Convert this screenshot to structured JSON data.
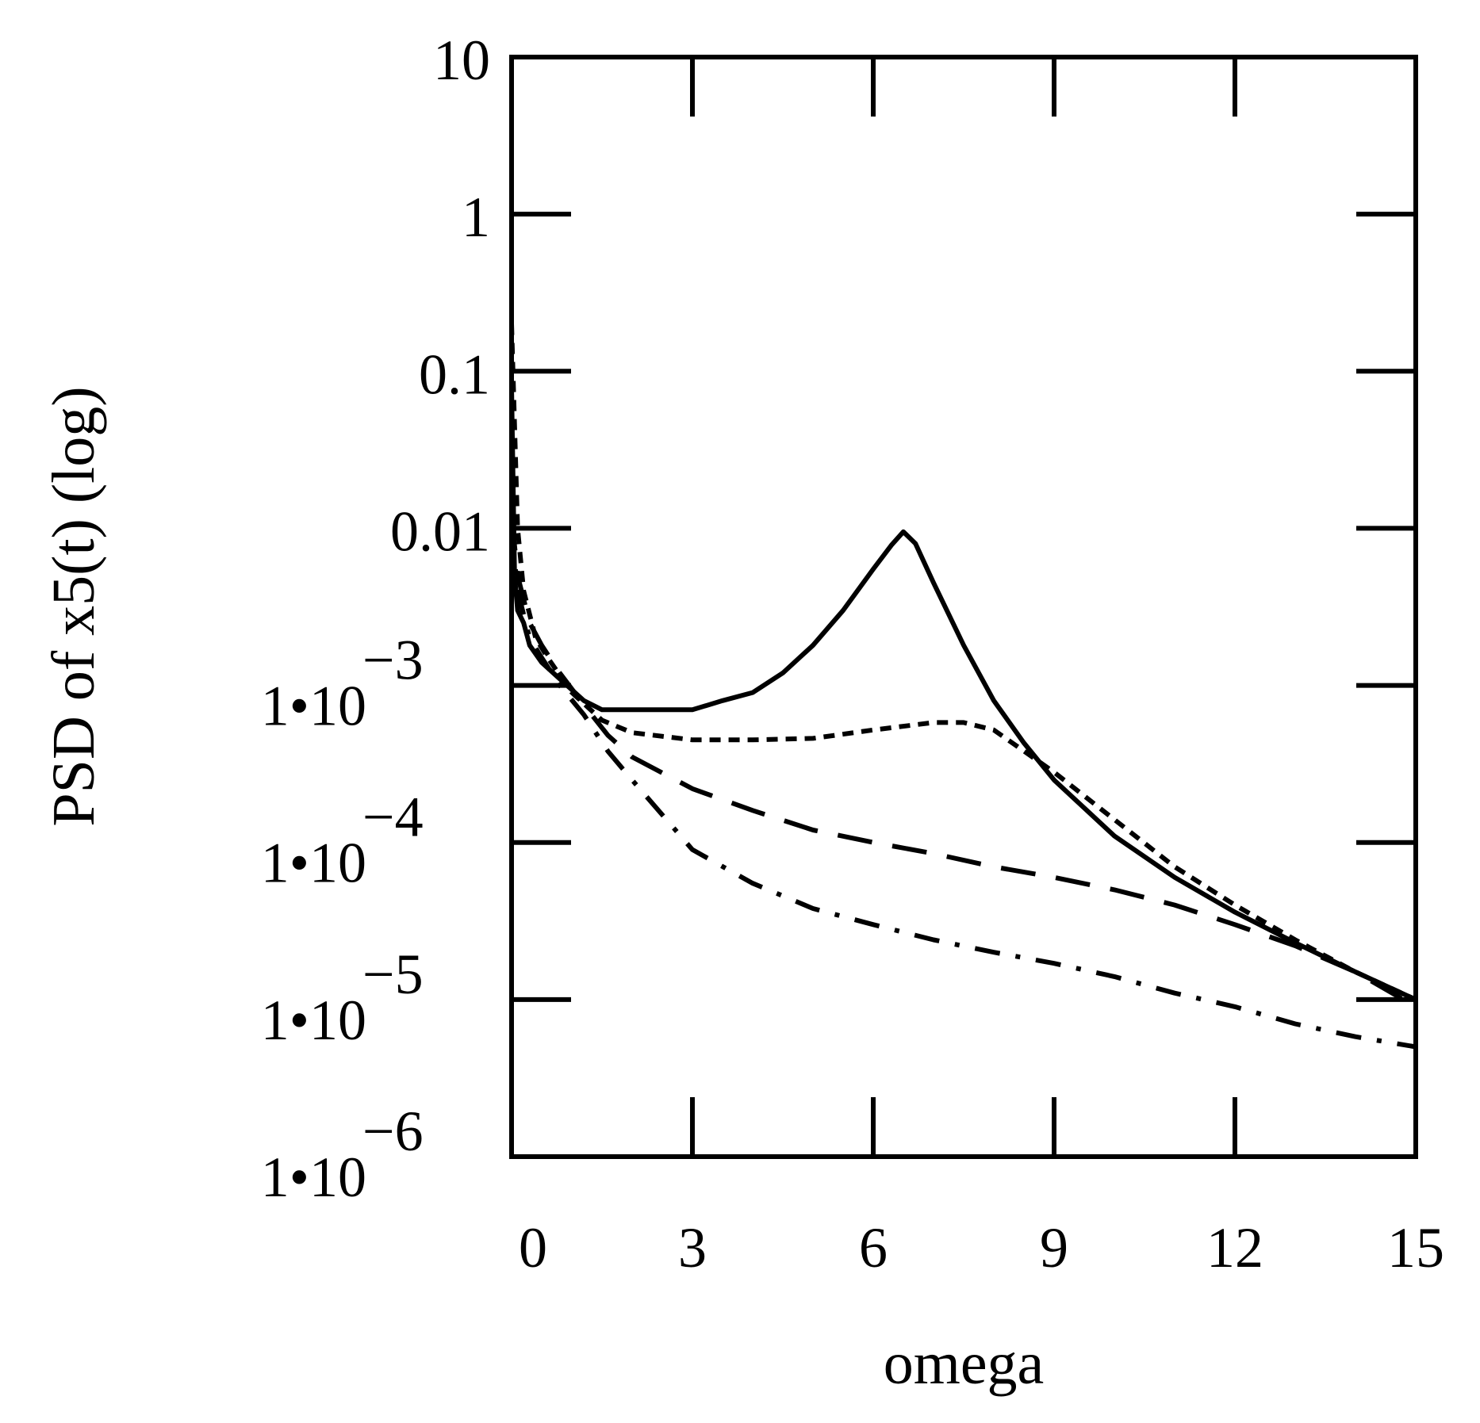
{
  "chart_data": {
    "type": "line",
    "title": "",
    "xlabel": "omega",
    "ylabel": "PSD of x5(t) (log)",
    "xscale": "linear",
    "yscale": "log",
    "xlim": [
      0,
      15
    ],
    "ylim": [
      1e-06,
      10
    ],
    "grid": false,
    "legend": "none",
    "x_ticks": [
      {
        "value": 0,
        "label": "0"
      },
      {
        "value": 3,
        "label": "3"
      },
      {
        "value": 6,
        "label": "6"
      },
      {
        "value": 9,
        "label": "9"
      },
      {
        "value": 12,
        "label": "12"
      },
      {
        "value": 15,
        "label": "15"
      }
    ],
    "y_ticks": [
      {
        "exp": 1,
        "label": "10"
      },
      {
        "exp": 0,
        "label": "1"
      },
      {
        "exp": -1,
        "label": "0.1"
      },
      {
        "exp": -2,
        "label": "0.01"
      },
      {
        "exp": -3,
        "mantissa": "1•10",
        "power": "−3"
      },
      {
        "exp": -4,
        "mantissa": "1•10",
        "power": "−4"
      },
      {
        "exp": -5,
        "mantissa": "1•10",
        "power": "−5"
      },
      {
        "exp": -6,
        "mantissa": "1•10",
        "power": "−6"
      }
    ],
    "series": [
      {
        "name": "solid",
        "style": "solid",
        "x": [
          0.0,
          0.05,
          0.1,
          0.2,
          0.3,
          0.5,
          0.8,
          1.2,
          1.5,
          2.0,
          3.0,
          3.5,
          4.0,
          4.5,
          5.0,
          5.5,
          6.0,
          6.3,
          6.5,
          6.7,
          7.0,
          7.5,
          8.0,
          8.5,
          9.0,
          10.0,
          11.0,
          12.0,
          13.0,
          14.0,
          15.0
        ],
        "y": [
          0.08,
          0.005,
          0.003,
          0.0025,
          0.0018,
          0.0014,
          0.0011,
          0.0008,
          0.0007,
          0.0007,
          0.0007,
          0.0008,
          0.0009,
          0.0012,
          0.0018,
          0.003,
          0.0055,
          0.0078,
          0.0095,
          0.008,
          0.0045,
          0.0018,
          0.0008,
          0.00043,
          0.00025,
          0.00011,
          6e-05,
          3.6e-05,
          2.3e-05,
          1.5e-05,
          1e-05
        ]
      },
      {
        "name": "short-dash",
        "style": "short-dash",
        "x": [
          0.0,
          0.1,
          0.2,
          0.4,
          0.6,
          1.0,
          1.5,
          2.0,
          3.0,
          4.0,
          5.0,
          6.0,
          7.0,
          7.5,
          8.0,
          9.0,
          10.0,
          11.0,
          12.0,
          13.0,
          14.0,
          15.0
        ],
        "y": [
          0.2,
          0.01,
          0.004,
          0.002,
          0.0015,
          0.0009,
          0.0006,
          0.0005,
          0.00045,
          0.00045,
          0.00046,
          0.00052,
          0.00058,
          0.00058,
          0.00052,
          0.00028,
          0.00014,
          7e-05,
          4e-05,
          2.4e-05,
          1.5e-05,
          1e-05
        ]
      },
      {
        "name": "long-dash",
        "style": "long-dash",
        "x": [
          0.0,
          0.1,
          0.3,
          0.5,
          0.8,
          1.2,
          1.6,
          2.0,
          3.0,
          4.0,
          5.0,
          6.0,
          7.0,
          8.0,
          9.0,
          10.0,
          11.0,
          12.0,
          13.0,
          14.0,
          15.0
        ],
        "y": [
          0.012,
          0.005,
          0.0025,
          0.0018,
          0.0012,
          0.00075,
          0.00048,
          0.00035,
          0.00022,
          0.00016,
          0.00012,
          0.0001,
          8.5e-05,
          7e-05,
          6e-05,
          5e-05,
          4e-05,
          3e-05,
          2.2e-05,
          1.5e-05,
          9e-06
        ]
      },
      {
        "name": "dash-dot",
        "style": "dash-dot",
        "x": [
          0.0,
          0.1,
          0.3,
          0.5,
          0.8,
          1.2,
          1.6,
          2.0,
          2.5,
          3.0,
          4.0,
          5.0,
          6.0,
          7.0,
          8.0,
          9.0,
          10.0,
          11.0,
          12.0,
          13.0,
          14.0,
          15.0
        ],
        "y": [
          0.01,
          0.004,
          0.002,
          0.0015,
          0.001,
          0.00065,
          0.00038,
          0.00025,
          0.00015,
          9e-05,
          5.5e-05,
          3.8e-05,
          3e-05,
          2.4e-05,
          2e-05,
          1.7e-05,
          1.4e-05,
          1.1e-05,
          9e-06,
          7e-06,
          5.8e-06,
          5e-06
        ]
      }
    ]
  }
}
